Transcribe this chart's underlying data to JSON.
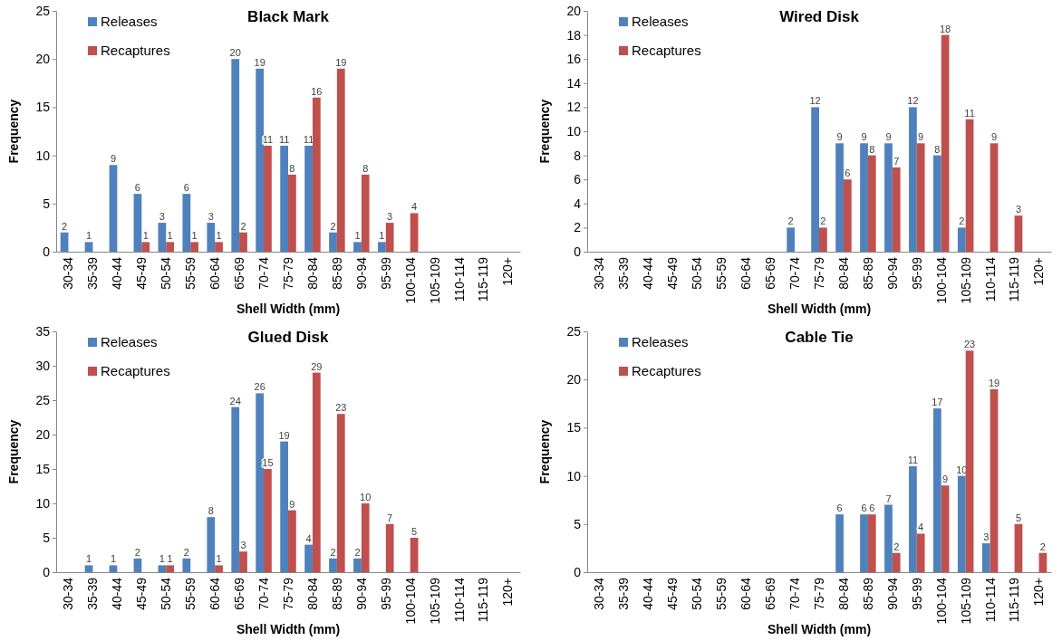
{
  "chart_data": [
    {
      "type": "bar",
      "title": "Black Mark",
      "xlabel": "Shell Width (mm)",
      "ylabel": "Frequency",
      "categories": [
        "30-34",
        "35-39",
        "40-44",
        "45-49",
        "50-54",
        "55-59",
        "60-64",
        "65-69",
        "70-74",
        "75-79",
        "80-84",
        "85-89",
        "90-94",
        "95-99",
        "100-104",
        "105-109",
        "110-114",
        "115-119",
        "120+"
      ],
      "ylim": [
        0,
        25
      ],
      "yticks": [
        0,
        5,
        10,
        15,
        20,
        25
      ],
      "legend": "top left",
      "data_labels": true,
      "series": [
        {
          "name": "Releases",
          "color": "#4f81bd",
          "values": [
            2,
            1,
            9,
            6,
            3,
            6,
            3,
            20,
            19,
            11,
            11,
            2,
            1,
            1,
            null,
            null,
            null,
            null,
            null
          ]
        },
        {
          "name": "Recaptures",
          "color": "#c0504d",
          "values": [
            null,
            null,
            null,
            1,
            1,
            1,
            1,
            2,
            11,
            8,
            16,
            19,
            8,
            3,
            4,
            null,
            null,
            null,
            null
          ]
        }
      ]
    },
    {
      "type": "bar",
      "title": "Wired Disk",
      "xlabel": "Shell Width (mm)",
      "ylabel": "Frequency",
      "categories": [
        "30-34",
        "35-39",
        "40-44",
        "45-49",
        "50-54",
        "55-59",
        "60-64",
        "65-69",
        "70-74",
        "75-79",
        "80-84",
        "85-89",
        "90-94",
        "95-99",
        "100-104",
        "105-109",
        "110-114",
        "115-119",
        "120+"
      ],
      "ylim": [
        0,
        20
      ],
      "yticks": [
        0,
        2,
        4,
        6,
        8,
        10,
        12,
        14,
        16,
        18,
        20
      ],
      "legend": "top left",
      "data_labels": true,
      "series": [
        {
          "name": "Releases",
          "color": "#4f81bd",
          "values": [
            null,
            null,
            null,
            null,
            null,
            null,
            null,
            null,
            2,
            12,
            9,
            9,
            9,
            12,
            8,
            2,
            null,
            null,
            null
          ]
        },
        {
          "name": "Recaptures",
          "color": "#c0504d",
          "values": [
            null,
            null,
            null,
            null,
            null,
            null,
            null,
            null,
            null,
            2,
            6,
            8,
            7,
            9,
            18,
            11,
            9,
            3,
            null
          ]
        }
      ]
    },
    {
      "type": "bar",
      "title": "Glued Disk",
      "xlabel": "Shell Width (mm)",
      "ylabel": "Frequency",
      "categories": [
        "30-34",
        "35-39",
        "40-44",
        "45-49",
        "50-54",
        "55-59",
        "60-64",
        "65-69",
        "70-74",
        "75-79",
        "80-84",
        "85-89",
        "90-94",
        "95-99",
        "100-104",
        "105-109",
        "110-114",
        "115-119",
        "120+"
      ],
      "ylim": [
        0,
        35
      ],
      "yticks": [
        0,
        5,
        10,
        15,
        20,
        25,
        30,
        35
      ],
      "legend": "top left",
      "data_labels": true,
      "series": [
        {
          "name": "Releases",
          "color": "#4f81bd",
          "values": [
            null,
            1,
            1,
            2,
            1,
            2,
            8,
            24,
            26,
            19,
            4,
            2,
            2,
            null,
            null,
            null,
            null,
            null,
            null
          ]
        },
        {
          "name": "Recaptures",
          "color": "#c0504d",
          "values": [
            null,
            null,
            null,
            null,
            1,
            null,
            1,
            3,
            15,
            9,
            29,
            23,
            10,
            7,
            5,
            null,
            null,
            null,
            null
          ]
        }
      ]
    },
    {
      "type": "bar",
      "title": "Cable Tie",
      "xlabel": "Shell Width (mm)",
      "ylabel": "Frequency",
      "categories": [
        "30-34",
        "35-39",
        "40-44",
        "45-49",
        "50-54",
        "55-59",
        "60-64",
        "65-69",
        "70-74",
        "75-79",
        "80-84",
        "85-89",
        "90-94",
        "95-99",
        "100-104",
        "105-109",
        "110-114",
        "115-119",
        "120+"
      ],
      "ylim": [
        0,
        25
      ],
      "yticks": [
        0,
        5,
        10,
        15,
        20,
        25
      ],
      "legend": "top left",
      "data_labels": true,
      "series": [
        {
          "name": "Releases",
          "color": "#4f81bd",
          "values": [
            null,
            null,
            null,
            null,
            null,
            null,
            null,
            null,
            null,
            null,
            6,
            6,
            7,
            11,
            17,
            10,
            3,
            null,
            null
          ]
        },
        {
          "name": "Recaptures",
          "color": "#c0504d",
          "values": [
            null,
            null,
            null,
            null,
            null,
            null,
            null,
            null,
            null,
            null,
            null,
            6,
            2,
            4,
            9,
            23,
            19,
            5,
            2
          ]
        }
      ]
    }
  ]
}
